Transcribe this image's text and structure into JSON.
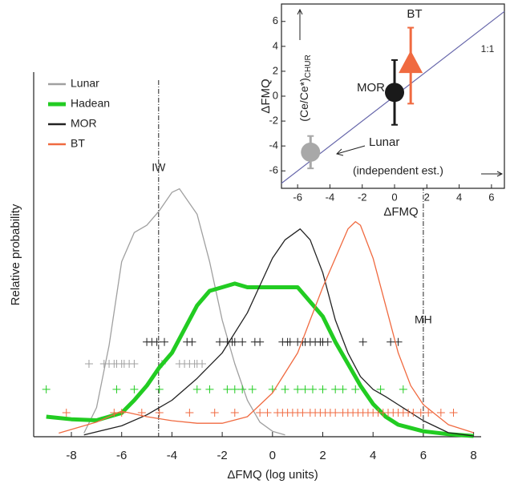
{
  "chart_data": [
    {
      "type": "line",
      "x_label": "ΔFMQ (log units)",
      "y_label": "Relative probability",
      "xlim": [
        -9.5,
        8.3
      ],
      "xticks": [
        -8,
        -6,
        -4,
        -2,
        0,
        2,
        4,
        6,
        8
      ],
      "ylim": [
        0,
        1
      ],
      "legend": "top-left",
      "vlines": [
        {
          "x": -4.53,
          "label": "IW"
        },
        {
          "x": 6.0,
          "label": "MH"
        }
      ],
      "series": [
        {
          "name": "Lunar",
          "color": "#a0a0a0",
          "width": 1.3,
          "x": [
            -7.5,
            -7,
            -6.5,
            -6,
            -5.5,
            -5,
            -4.5,
            -4,
            -3.7,
            -3,
            -2.5,
            -2,
            -1.5,
            -1,
            -0.5,
            0,
            0.5
          ],
          "values": [
            0.01,
            0.08,
            0.25,
            0.48,
            0.56,
            0.58,
            0.62,
            0.67,
            0.68,
            0.61,
            0.48,
            0.32,
            0.2,
            0.1,
            0.04,
            0.015,
            0.005
          ],
          "rug": [
            -7.3,
            -6.7,
            -6.5,
            -6.3,
            -6.2,
            -6.0,
            -5.9,
            -5.7,
            -5.5,
            -4.4,
            -3.7,
            -3.5,
            -3.3,
            -3.1,
            -3.0,
            -2.8
          ]
        },
        {
          "name": "Hadean",
          "color": "#22cc22",
          "width": 5,
          "x": [
            -9,
            -8,
            -7,
            -6,
            -5.5,
            -5,
            -4.5,
            -4,
            -3,
            -2.5,
            -2,
            -1.5,
            -1,
            0,
            1,
            1.5,
            2,
            2.5,
            3,
            3.5,
            4,
            4.5,
            5,
            6,
            7,
            8
          ],
          "values": [
            0.055,
            0.048,
            0.045,
            0.065,
            0.1,
            0.14,
            0.19,
            0.23,
            0.36,
            0.4,
            0.41,
            0.42,
            0.41,
            0.41,
            0.41,
            0.37,
            0.33,
            0.26,
            0.2,
            0.14,
            0.09,
            0.055,
            0.033,
            0.015,
            0.007,
            0.002
          ],
          "rug": [
            -9.0,
            -6.2,
            -5.5,
            -4.5,
            -3.0,
            -2.5,
            -1.8,
            -1.5,
            -1.2,
            -0.8,
            0.0,
            0.5,
            1.0,
            1.3,
            1.6,
            2.0,
            2.5,
            2.8,
            3.3,
            4.3,
            5.2
          ]
        },
        {
          "name": "MOR",
          "color": "#222222",
          "width": 1.3,
          "x": [
            -7.5,
            -6,
            -5,
            -4,
            -3,
            -2,
            -1,
            0,
            0.5,
            1.1,
            1.5,
            2,
            2.5,
            3,
            3.5,
            4,
            4.5,
            5,
            6,
            7,
            8
          ],
          "values": [
            0.005,
            0.03,
            0.06,
            0.1,
            0.16,
            0.23,
            0.34,
            0.49,
            0.54,
            0.57,
            0.54,
            0.45,
            0.32,
            0.23,
            0.165,
            0.13,
            0.11,
            0.088,
            0.044,
            0.011,
            0.002
          ],
          "rug": [
            -5.0,
            -4.8,
            -4.6,
            -4.3,
            -3.4,
            -3.2,
            -2.1,
            -1.8,
            -1.6,
            -1.5,
            -1.2,
            -0.7,
            -0.5,
            0.4,
            0.6,
            0.7,
            1.0,
            1.2,
            1.3,
            1.5,
            1.7,
            1.9,
            2.0,
            2.2,
            3.6,
            4.7,
            5.0
          ]
        },
        {
          "name": "BT",
          "color": "#f06a40",
          "width": 1.3,
          "x": [
            -8.5,
            -7,
            -6,
            -5,
            -4,
            -3,
            -2,
            -1,
            0,
            1,
            1.5,
            2,
            2.5,
            3,
            3.3,
            3.5,
            4,
            4.5,
            5,
            5.5,
            6,
            7,
            8
          ],
          "values": [
            0.01,
            0.04,
            0.07,
            0.055,
            0.044,
            0.037,
            0.037,
            0.055,
            0.12,
            0.23,
            0.32,
            0.41,
            0.49,
            0.57,
            0.59,
            0.58,
            0.49,
            0.36,
            0.23,
            0.14,
            0.088,
            0.033,
            0.011
          ],
          "rug": [
            -8.2,
            -6.3,
            -6.0,
            -5.2,
            -4.5,
            -3.3,
            -2.3,
            -1.5,
            -0.5,
            -0.2,
            0.2,
            0.4,
            0.6,
            0.8,
            1.0,
            1.2,
            1.5,
            1.7,
            1.9,
            2.1,
            2.3,
            2.5,
            2.8,
            3.0,
            3.2,
            3.4,
            3.6,
            3.8,
            4.0,
            4.2,
            4.4,
            4.6,
            4.8,
            5.0,
            5.2,
            5.4,
            5.6,
            5.9,
            6.2,
            6.7,
            7.2
          ]
        }
      ]
    },
    {
      "type": "errorbar",
      "x_label": "ΔFMQ",
      "y_label": "ΔFMQ",
      "y_note": "(Ce/Ce*)",
      "y_note_sub": "CHUR",
      "x_note": "(independent est.)",
      "diagonal_label": "1:1",
      "xlim": [
        -7,
        6.8
      ],
      "xticks": [
        -6,
        -4,
        -2,
        0,
        2,
        4,
        6
      ],
      "ylim": [
        -7.4,
        7.4
      ],
      "yticks": [
        -6,
        -4,
        -2,
        0,
        2,
        4,
        6
      ],
      "series": [
        {
          "name": "Lunar",
          "color": "#a8a8a8",
          "marker": "circle",
          "x": [
            -5.2
          ],
          "values": [
            -4.5
          ],
          "y_low": [
            -5.8
          ],
          "y_high": [
            -3.2
          ]
        },
        {
          "name": "MOR",
          "color": "#1a1a1a",
          "marker": "circle",
          "x": [
            0
          ],
          "values": [
            0.3
          ],
          "y_low": [
            -2.3
          ],
          "y_high": [
            2.9
          ]
        },
        {
          "name": "BT",
          "color": "#f06a40",
          "marker": "triangle",
          "x": [
            1
          ],
          "values": [
            2.5
          ],
          "y_low": [
            -0.6
          ],
          "y_high": [
            5.5
          ]
        }
      ]
    }
  ]
}
